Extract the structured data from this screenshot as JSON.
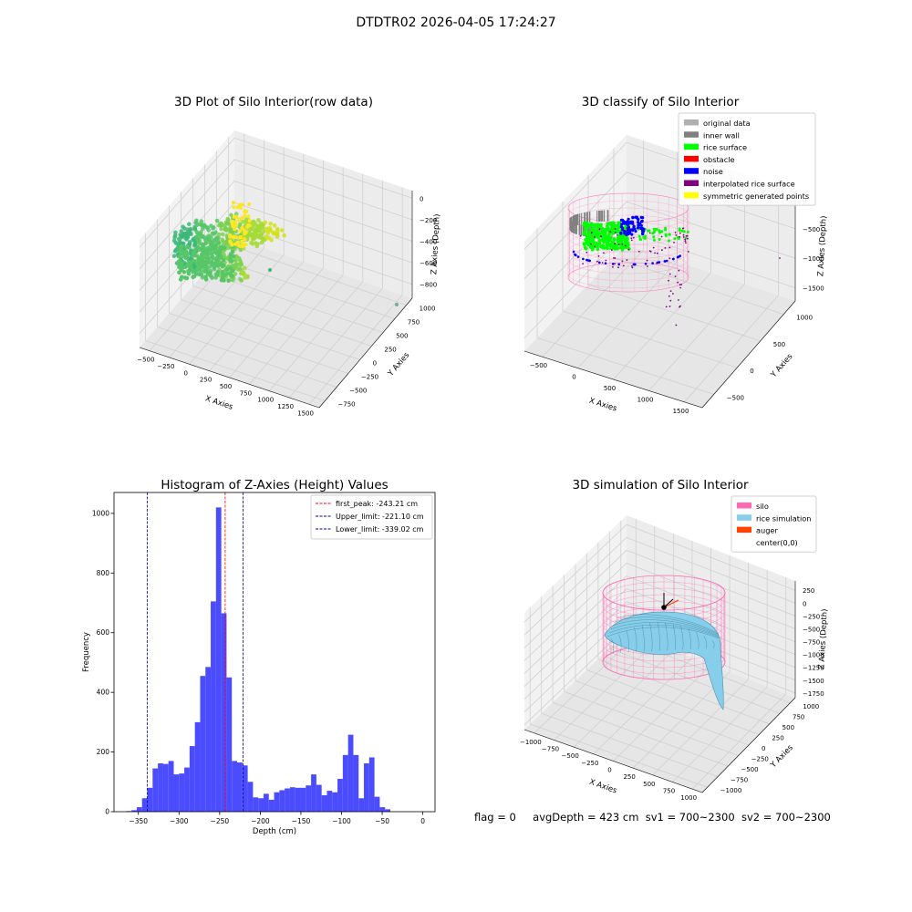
{
  "suptitle": "DTDTR02 2026-04-05 17:24:27",
  "status": {
    "flag": "flag = 0",
    "avg_depth": "avgDepth = 423 cm",
    "sv1": "sv1 = 700~2300",
    "sv2": "sv2 = 700~2300"
  },
  "chart_data": [
    {
      "type": "scatter3d",
      "title": "3D Plot of Silo Interior(row data)",
      "xlabel": "X Axies",
      "ylabel": "Y Axies",
      "zlabel": "Z Axies (Depth)",
      "x_ticks": [
        -500,
        -250,
        0,
        250,
        500,
        750,
        1000,
        1250,
        1500
      ],
      "y_ticks": [
        -750,
        -500,
        -250,
        0,
        250,
        500,
        750,
        1000
      ],
      "z_ticks": [
        0,
        -200,
        -400,
        -600,
        -800
      ],
      "colormap": [
        "#3cb878",
        "#56c667",
        "#7ad151",
        "#a5db36",
        "#d2e21b",
        "#fde725"
      ]
    },
    {
      "type": "scatter3d",
      "title": "3D classify of Silo Interior",
      "xlabel": "X Axies",
      "ylabel": "Y Axies",
      "zlabel": "Z Axies (Depth)",
      "x_ticks": [
        -500,
        0,
        500,
        1000,
        1500
      ],
      "y_ticks": [
        -500,
        0,
        500,
        1000
      ],
      "z_ticks": [
        0,
        -500,
        -1000,
        -1500
      ],
      "legend_position": "top-right",
      "legend": [
        {
          "label": "original data",
          "color": "#b0b0b0"
        },
        {
          "label": "inner wall",
          "color": "#808080"
        },
        {
          "label": "rice surface",
          "color": "#00ff00"
        },
        {
          "label": "obstacle",
          "color": "#ff0000"
        },
        {
          "label": "noise",
          "color": "#0000ff"
        },
        {
          "label": "interpolated rice surface",
          "color": "#800080"
        },
        {
          "label": "symmetric generated points",
          "color": "#ffff00"
        }
      ]
    },
    {
      "type": "bar",
      "title": "Histogram of Z-Axies (Height) Values",
      "xlabel": "Depth (cm)",
      "ylabel": "Frequency",
      "xlim": [
        -380,
        15
      ],
      "ylim": [
        0,
        1070
      ],
      "x_ticks": [
        -350,
        -300,
        -250,
        -200,
        -150,
        -100,
        -50,
        0
      ],
      "y_ticks": [
        0,
        200,
        400,
        600,
        800,
        1000
      ],
      "bar_color": "#4b4bff",
      "bin_start": -365,
      "bin_width": 6.5,
      "values": [
        2,
        5,
        15,
        45,
        80,
        145,
        162,
        160,
        170,
        125,
        128,
        148,
        220,
        300,
        455,
        485,
        705,
        1020,
        665,
        450,
        170,
        165,
        155,
        100,
        48,
        45,
        60,
        40,
        65,
        72,
        78,
        82,
        80,
        80,
        88,
        125,
        90,
        55,
        70,
        65,
        110,
        190,
        258,
        190,
        45,
        162,
        182,
        50,
        15,
        8
      ],
      "vlines": [
        {
          "label": "first_peak: -243.21 cm",
          "x": -243.21,
          "color": "#ff0000"
        },
        {
          "label": "Upper_limit: -221.10 cm",
          "x": -221.1,
          "color": "#0000aa"
        },
        {
          "label": "Lower_limit: -339.02 cm",
          "x": -339.02,
          "color": "#0000aa"
        }
      ]
    },
    {
      "type": "surface3d",
      "title": "3D simulation of Silo Interior",
      "xlabel": "X Axies",
      "ylabel": "Y Axies",
      "zlabel": "Z Axies (Depth)",
      "x_ticks": [
        -1000,
        -750,
        -500,
        -250,
        0,
        250,
        500,
        750,
        1000
      ],
      "y_ticks": [
        -1000,
        -750,
        -500,
        -250,
        0,
        250,
        500,
        750,
        1000
      ],
      "z_ticks": [
        250,
        0,
        -250,
        -500,
        -750,
        -1000,
        -1250,
        -1500,
        -1750
      ],
      "legend_position": "top-right",
      "legend": [
        {
          "label": "silo",
          "color": "#ff69b4"
        },
        {
          "label": "rice simulation",
          "color": "#87ceeb"
        },
        {
          "label": "auger",
          "color": "#ff4500"
        },
        {
          "label": "center(0,0)",
          "color": ""
        }
      ]
    }
  ]
}
